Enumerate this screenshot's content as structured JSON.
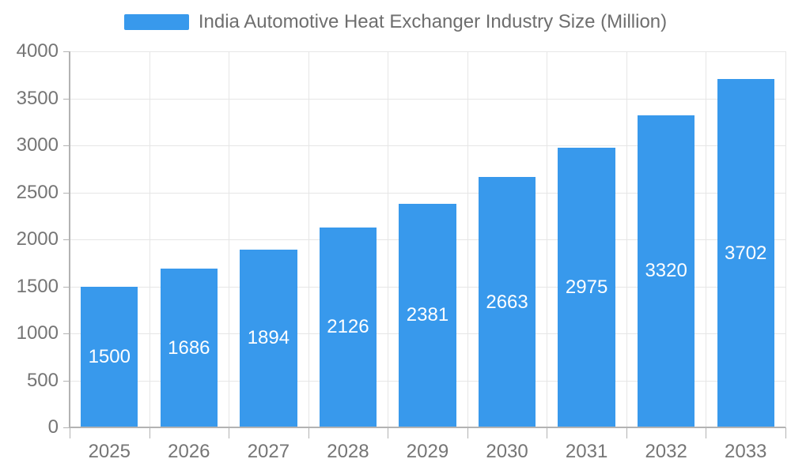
{
  "chart_data": {
    "type": "bar",
    "title": "India Automotive Heat Exchanger Industry Size (Million)",
    "series_name": "India Automotive Heat Exchanger Industry Size (Million)",
    "categories": [
      "2025",
      "2026",
      "2027",
      "2028",
      "2029",
      "2030",
      "2031",
      "2032",
      "2033"
    ],
    "values": [
      1500,
      1686,
      1894,
      2126,
      2381,
      2663,
      2975,
      3320,
      3702
    ],
    "xlabel": "",
    "ylabel": "",
    "ylim": [
      0,
      4000
    ],
    "ytick_step": 500,
    "grid": true,
    "legend_position": "top",
    "bar_color": "#3899EC",
    "value_label_color": "#FFFFFF",
    "axis_text_color": "#757575",
    "legend_text_color": "#6E6E6E",
    "grid_color": "#E6E6E6",
    "axis_line_color": "#B3B3B3"
  }
}
